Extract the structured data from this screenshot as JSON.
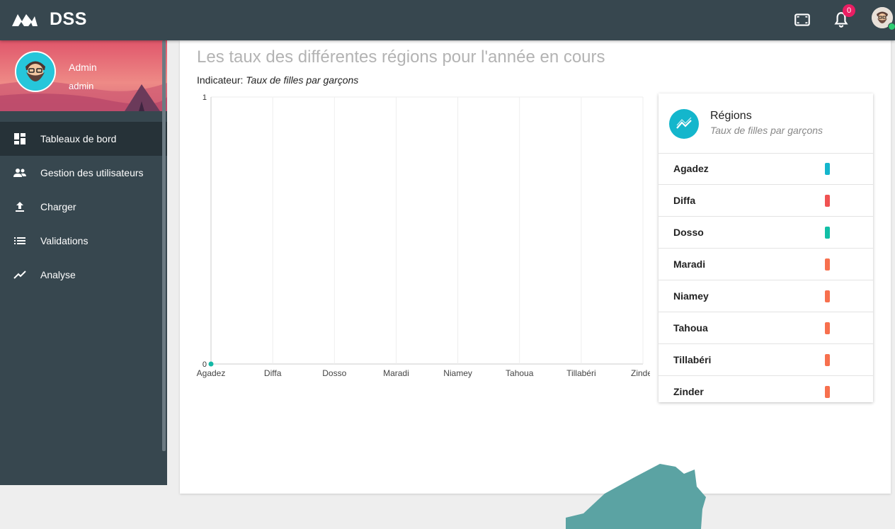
{
  "app": {
    "brand": "DSS"
  },
  "topbar": {
    "fullscreen_icon": "fullscreen-icon",
    "bell_icon": "bell-icon",
    "notification_count": "0",
    "avatar_icon": "user-avatar-icon",
    "status_color": "#2ecc71"
  },
  "profile": {
    "name": "Admin",
    "username": "admin"
  },
  "sidebar": {
    "items": [
      {
        "label": "Tableaux de bord",
        "icon": "dashboard-icon",
        "active": true
      },
      {
        "label": "Gestion des utilisateurs",
        "icon": "people-icon",
        "active": false
      },
      {
        "label": "Charger",
        "icon": "upload-icon",
        "active": false
      },
      {
        "label": "Validations",
        "icon": "list-icon",
        "active": false
      },
      {
        "label": "Analyse",
        "icon": "trending-icon",
        "active": false
      }
    ]
  },
  "main": {
    "title": "Les taux des différentes régions pour l'année en cours",
    "indicator_label": "Indicateur:",
    "indicator_value": "Taux de filles par garçons"
  },
  "chart_data": {
    "type": "line",
    "categories": [
      "Agadez",
      "Diffa",
      "Dosso",
      "Maradi",
      "Niamey",
      "Tahoua",
      "Tillabéri",
      "Zinder"
    ],
    "series": [
      {
        "values": [
          0,
          null,
          null,
          null,
          null,
          null,
          null,
          null
        ],
        "color": "#14b8a6"
      }
    ],
    "yticks": [
      "0",
      "1"
    ],
    "ylim": [
      0,
      1
    ],
    "grid": true
  },
  "legend": {
    "title": "Régions",
    "subtitle": "Taux de filles par garçons",
    "icon": "trending-icon",
    "items": [
      {
        "name": "Agadez",
        "color": "#14b6cc"
      },
      {
        "name": "Diffa",
        "color": "#f05252"
      },
      {
        "name": "Dosso",
        "color": "#12bfa6"
      },
      {
        "name": "Maradi",
        "color": "#f7704e"
      },
      {
        "name": "Niamey",
        "color": "#f7704e"
      },
      {
        "name": "Tahoua",
        "color": "#f7704e"
      },
      {
        "name": "Tillabéri",
        "color": "#f7704e"
      },
      {
        "name": "Zinder",
        "color": "#f7704e"
      }
    ]
  },
  "map": {
    "fill_color": "#5ba3a3"
  }
}
